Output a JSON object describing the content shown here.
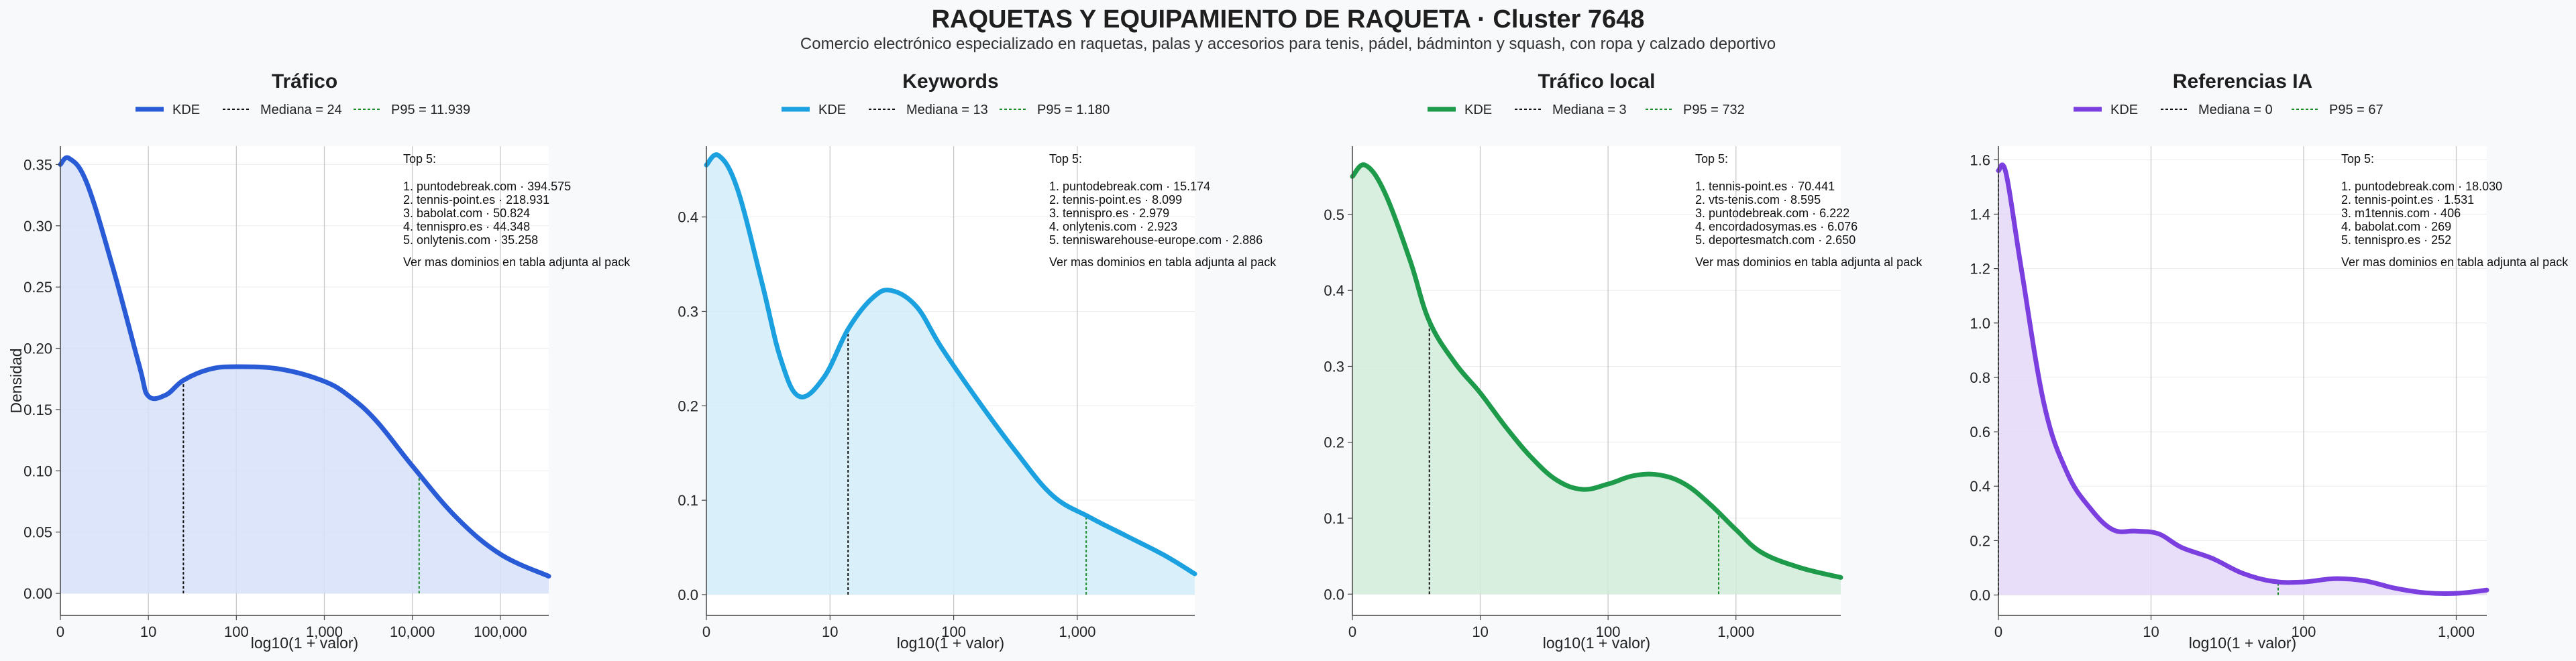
{
  "header": {
    "title": "RAQUETAS Y EQUIPAMIENTO DE RAQUETA · Cluster 7648",
    "subtitle": "Comercio electrónico especializado en raquetas, palas y accesorios para tenis, pádel, bádminton y squash, con ropa y calzado deportivo"
  },
  "chart_data": [
    {
      "type": "area",
      "title": "Tráfico",
      "color": "#2a5bd7",
      "fill": "#d6e0f8",
      "xlabel": "log10(1 + valor)",
      "ylabel": "Densidad",
      "xscale": "log10(1+x)",
      "xlim": [
        0,
        5.55
      ],
      "ylim": [
        -0.018,
        0.365
      ],
      "xticks": [
        {
          "v": 0,
          "label": "0"
        },
        {
          "v": 1,
          "label": "10"
        },
        {
          "v": 2,
          "label": "100"
        },
        {
          "v": 3,
          "label": "1,000"
        },
        {
          "v": 4,
          "label": "10,000"
        },
        {
          "v": 5,
          "label": "100,000"
        }
      ],
      "yticks": [
        {
          "v": 0,
          "label": "0.00"
        },
        {
          "v": 0.05,
          "label": "0.05"
        },
        {
          "v": 0.1,
          "label": "0.10"
        },
        {
          "v": 0.15,
          "label": "0.15"
        },
        {
          "v": 0.2,
          "label": "0.20"
        },
        {
          "v": 0.25,
          "label": "0.25"
        },
        {
          "v": 0.3,
          "label": "0.30"
        },
        {
          "v": 0.35,
          "label": "0.35"
        }
      ],
      "kde": {
        "x": [
          0,
          0.1,
          0.3,
          0.6,
          0.9,
          1.0,
          1.2,
          1.4,
          1.7,
          2.0,
          2.5,
          3.0,
          3.3,
          3.6,
          4.0,
          4.5,
          5.0,
          5.55
        ],
        "y": [
          0.35,
          0.355,
          0.335,
          0.265,
          0.185,
          0.161,
          0.162,
          0.174,
          0.183,
          0.185,
          0.183,
          0.173,
          0.16,
          0.14,
          0.104,
          0.062,
          0.032,
          0.014
        ]
      },
      "median": {
        "x": 1.398,
        "label": "Mediana = 24"
      },
      "p95": {
        "x": 4.077,
        "label": "P95 = 11.939"
      },
      "legend": {
        "kde_label": "KDE"
      },
      "annotation": {
        "header": "Top 5:",
        "lines": [
          "1. puntodebreak.com · 394.575",
          "2. tennis-point.es · 218.931",
          "3. babolat.com · 50.824",
          "4. tennispro.es · 44.348",
          "5. onlytenis.com · 35.258"
        ],
        "footer": "Ver mas dominios en tabla adjunta al pack"
      }
    },
    {
      "type": "area",
      "title": "Keywords",
      "color": "#1ba1e0",
      "fill": "#d2ecf9",
      "xlabel": "log10(1 + valor)",
      "ylabel": "",
      "xscale": "log10(1+x)",
      "xlim": [
        0,
        3.95
      ],
      "ylim": [
        -0.022,
        0.475
      ],
      "xticks": [
        {
          "v": 0,
          "label": "0"
        },
        {
          "v": 1,
          "label": "10"
        },
        {
          "v": 2,
          "label": "100"
        },
        {
          "v": 3,
          "label": "1,000"
        }
      ],
      "yticks": [
        {
          "v": 0,
          "label": "0.0"
        },
        {
          "v": 0.1,
          "label": "0.1"
        },
        {
          "v": 0.2,
          "label": "0.2"
        },
        {
          "v": 0.3,
          "label": "0.3"
        },
        {
          "v": 0.4,
          "label": "0.4"
        }
      ],
      "kde": {
        "x": [
          0,
          0.1,
          0.25,
          0.45,
          0.6,
          0.75,
          0.95,
          1.15,
          1.35,
          1.5,
          1.7,
          1.9,
          2.2,
          2.5,
          2.8,
          3.1,
          3.4,
          3.7,
          3.95
        ],
        "y": [
          0.455,
          0.465,
          0.43,
          0.33,
          0.25,
          0.21,
          0.23,
          0.282,
          0.315,
          0.322,
          0.305,
          0.262,
          0.205,
          0.152,
          0.105,
          0.082,
          0.062,
          0.042,
          0.022
        ]
      },
      "median": {
        "x": 1.146,
        "label": "Mediana = 13"
      },
      "p95": {
        "x": 3.072,
        "label": "P95 = 1.180"
      },
      "legend": {
        "kde_label": "KDE"
      },
      "annotation": {
        "header": "Top 5:",
        "lines": [
          "1. puntodebreak.com · 15.174",
          "2. tennis-point.es · 8.099",
          "3. tennispro.es · 2.979",
          "4. onlytenis.com · 2.923",
          "5. tenniswarehouse-europe.com · 2.886"
        ],
        "footer": "Ver mas dominios en tabla adjunta al pack"
      }
    },
    {
      "type": "area",
      "title": "Tráfico local",
      "color": "#1d9a4a",
      "fill": "#d1ecda",
      "xlabel": "log10(1 + valor)",
      "ylabel": "",
      "xscale": "log10(1+x)",
      "xlim": [
        0,
        3.82
      ],
      "ylim": [
        -0.028,
        0.59
      ],
      "xticks": [
        {
          "v": 0,
          "label": "0"
        },
        {
          "v": 1,
          "label": "10"
        },
        {
          "v": 2,
          "label": "100"
        },
        {
          "v": 3,
          "label": "1,000"
        }
      ],
      "yticks": [
        {
          "v": 0,
          "label": "0.0"
        },
        {
          "v": 0.1,
          "label": "0.1"
        },
        {
          "v": 0.2,
          "label": "0.2"
        },
        {
          "v": 0.3,
          "label": "0.3"
        },
        {
          "v": 0.4,
          "label": "0.4"
        },
        {
          "v": 0.5,
          "label": "0.5"
        }
      ],
      "kde": {
        "x": [
          0,
          0.1,
          0.25,
          0.45,
          0.6,
          0.8,
          1.0,
          1.2,
          1.4,
          1.6,
          1.8,
          2.0,
          2.2,
          2.4,
          2.6,
          2.8,
          3.0,
          3.2,
          3.5,
          3.82
        ],
        "y": [
          0.55,
          0.565,
          0.53,
          0.44,
          0.36,
          0.305,
          0.265,
          0.22,
          0.18,
          0.15,
          0.138,
          0.145,
          0.156,
          0.157,
          0.145,
          0.118,
          0.085,
          0.055,
          0.035,
          0.022
        ]
      },
      "median": {
        "x": 0.602,
        "label": "Mediana = 3"
      },
      "p95": {
        "x": 2.865,
        "label": "P95 = 732"
      },
      "legend": {
        "kde_label": "KDE"
      },
      "annotation": {
        "header": "Top 5:",
        "lines": [
          "1. tennis-point.es · 70.441",
          "2. vts-tenis.com · 8.595",
          "3. puntodebreak.com · 6.222",
          "4. encordadosymas.es · 6.076",
          "5. deportesmatch.com · 2.650"
        ],
        "footer": "Ver mas dominios en tabla adjunta al pack"
      }
    },
    {
      "type": "area",
      "title": "Referencias IA",
      "color": "#7b3fe0",
      "fill": "#e4d8f8",
      "xlabel": "log10(1 + valor)",
      "ylabel": "",
      "xscale": "log10(1+x)",
      "xlim": [
        0,
        3.2
      ],
      "ylim": [
        -0.075,
        1.65
      ],
      "xticks": [
        {
          "v": 0,
          "label": "0"
        },
        {
          "v": 1,
          "label": "10"
        },
        {
          "v": 2,
          "label": "100"
        },
        {
          "v": 3,
          "label": "1,000"
        }
      ],
      "yticks": [
        {
          "v": 0,
          "label": "0.0"
        },
        {
          "v": 0.2,
          "label": "0.2"
        },
        {
          "v": 0.4,
          "label": "0.4"
        },
        {
          "v": 0.6,
          "label": "0.6"
        },
        {
          "v": 0.8,
          "label": "0.8"
        },
        {
          "v": 1.0,
          "label": "1.0"
        },
        {
          "v": 1.2,
          "label": "1.2"
        },
        {
          "v": 1.4,
          "label": "1.4"
        },
        {
          "v": 1.6,
          "label": "1.6"
        }
      ],
      "kde": {
        "x": [
          0,
          0.05,
          0.15,
          0.3,
          0.45,
          0.6,
          0.75,
          0.9,
          1.05,
          1.2,
          1.4,
          1.6,
          1.8,
          2.0,
          2.2,
          2.4,
          2.6,
          2.8,
          3.0,
          3.2
        ],
        "y": [
          1.56,
          1.55,
          1.2,
          0.7,
          0.45,
          0.32,
          0.24,
          0.235,
          0.225,
          0.175,
          0.135,
          0.08,
          0.05,
          0.048,
          0.06,
          0.052,
          0.025,
          0.008,
          0.006,
          0.018
        ]
      },
      "median": {
        "x": 0,
        "label": "Mediana = 0"
      },
      "p95": {
        "x": 1.833,
        "label": "P95 = 67"
      },
      "legend": {
        "kde_label": "KDE"
      },
      "annotation": {
        "header": "Top 5:",
        "lines": [
          "1. puntodebreak.com · 18.030",
          "2. tennis-point.es · 1.531",
          "3. m1tennis.com · 406",
          "4. babolat.com · 269",
          "5. tennispro.es · 252"
        ],
        "footer": "Ver mas dominios en tabla adjunta al pack"
      }
    }
  ]
}
